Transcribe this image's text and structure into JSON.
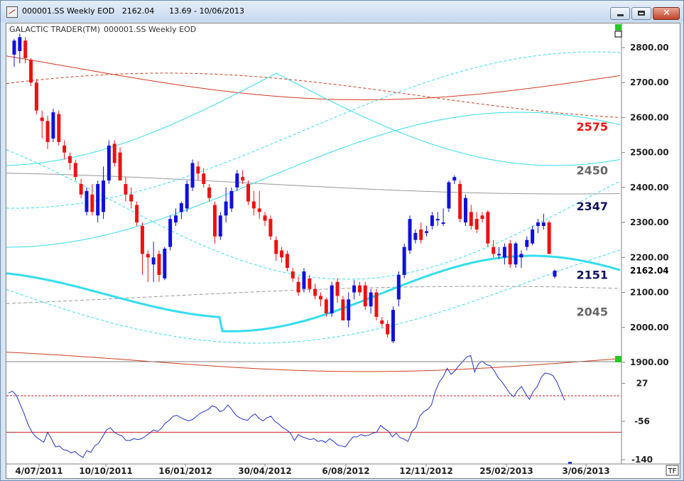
{
  "window": {
    "title": "000001.SS Weekly EOD   2162.04      13.69 - 10/06/2013"
  },
  "chart_header": {
    "left": "GALACTIC TRADER(TM)",
    "right": "000001.SS Weekly EOD"
  },
  "badge": "TF",
  "colors": {
    "up": "#1010dd",
    "down": "#ee1111",
    "cyan": "#33ddee",
    "red_band": "#d23b1e",
    "gray_band": "#999999",
    "osc": "#2233cc"
  },
  "chart_data": [
    {
      "type": "candlestick",
      "title": "",
      "x_tick_labels": [
        "4/07/2011",
        "10/10/2011",
        "16/01/2012",
        "30/04/2012",
        "6/08/2012",
        "12/11/2012",
        "25/02/2013",
        "3/06/2013"
      ],
      "y_ticks": [
        1900,
        2000,
        2100,
        2200,
        2300,
        2400,
        2500,
        2600,
        2700,
        2800
      ],
      "y_tick_labels": [
        "1900.00",
        "2000.00",
        "2100.00",
        "2200.00",
        "2300.00",
        "2400.00",
        "2500.00",
        "2600.00",
        "2700.00",
        "2800.00"
      ],
      "ylim": [
        1900,
        2860
      ],
      "last_price": "2162.04",
      "annotations": [
        {
          "text": "2575",
          "value": 2575,
          "color": "#ee1111"
        },
        {
          "text": "2450",
          "value": 2450,
          "color": "#666666"
        },
        {
          "text": "2347",
          "value": 2347,
          "color": "#101060"
        },
        {
          "text": "2151",
          "value": 2151,
          "color": "#101060"
        },
        {
          "text": "2045",
          "value": 2045,
          "color": "#666666"
        }
      ],
      "candles": [
        {
          "o": 2780,
          "h": 2825,
          "l": 2745,
          "c": 2820
        },
        {
          "o": 2790,
          "h": 2840,
          "l": 2755,
          "c": 2830
        },
        {
          "o": 2820,
          "h": 2830,
          "l": 2755,
          "c": 2770
        },
        {
          "o": 2765,
          "h": 2770,
          "l": 2690,
          "c": 2700
        },
        {
          "o": 2700,
          "h": 2710,
          "l": 2610,
          "c": 2620
        },
        {
          "o": 2600,
          "h": 2620,
          "l": 2540,
          "c": 2590
        },
        {
          "o": 2590,
          "h": 2605,
          "l": 2510,
          "c": 2530
        },
        {
          "o": 2540,
          "h": 2625,
          "l": 2530,
          "c": 2615
        },
        {
          "o": 2610,
          "h": 2620,
          "l": 2520,
          "c": 2530
        },
        {
          "o": 2520,
          "h": 2535,
          "l": 2480,
          "c": 2500
        },
        {
          "o": 2490,
          "h": 2500,
          "l": 2450,
          "c": 2470
        },
        {
          "o": 2470,
          "h": 2480,
          "l": 2420,
          "c": 2430
        },
        {
          "o": 2410,
          "h": 2425,
          "l": 2370,
          "c": 2380
        },
        {
          "o": 2330,
          "h": 2400,
          "l": 2320,
          "c": 2390
        },
        {
          "o": 2380,
          "h": 2410,
          "l": 2320,
          "c": 2330
        },
        {
          "o": 2320,
          "h": 2420,
          "l": 2300,
          "c": 2410
        },
        {
          "o": 2330,
          "h": 2460,
          "l": 2310,
          "c": 2420
        },
        {
          "o": 2420,
          "h": 2535,
          "l": 2410,
          "c": 2520
        },
        {
          "o": 2525,
          "h": 2535,
          "l": 2460,
          "c": 2470
        },
        {
          "o": 2500,
          "h": 2515,
          "l": 2420,
          "c": 2420
        },
        {
          "o": 2410,
          "h": 2430,
          "l": 2360,
          "c": 2380
        },
        {
          "o": 2380,
          "h": 2400,
          "l": 2340,
          "c": 2360
        },
        {
          "o": 2350,
          "h": 2360,
          "l": 2290,
          "c": 2300
        },
        {
          "o": 2290,
          "h": 2300,
          "l": 2150,
          "c": 2210
        },
        {
          "o": 2210,
          "h": 2220,
          "l": 2130,
          "c": 2200
        },
        {
          "o": 2180,
          "h": 2245,
          "l": 2130,
          "c": 2200
        },
        {
          "o": 2210,
          "h": 2220,
          "l": 2130,
          "c": 2150
        },
        {
          "o": 2140,
          "h": 2230,
          "l": 2135,
          "c": 2225
        },
        {
          "o": 2230,
          "h": 2320,
          "l": 2220,
          "c": 2310
        },
        {
          "o": 2300,
          "h": 2340,
          "l": 2290,
          "c": 2320
        },
        {
          "o": 2330,
          "h": 2360,
          "l": 2310,
          "c": 2355
        },
        {
          "o": 2340,
          "h": 2420,
          "l": 2330,
          "c": 2410
        },
        {
          "o": 2400,
          "h": 2480,
          "l": 2390,
          "c": 2470
        },
        {
          "o": 2460,
          "h": 2475,
          "l": 2420,
          "c": 2440
        },
        {
          "o": 2440,
          "h": 2455,
          "l": 2400,
          "c": 2410
        },
        {
          "o": 2400,
          "h": 2410,
          "l": 2360,
          "c": 2370
        },
        {
          "o": 2350,
          "h": 2360,
          "l": 2240,
          "c": 2260
        },
        {
          "o": 2260,
          "h": 2330,
          "l": 2250,
          "c": 2320
        },
        {
          "o": 2320,
          "h": 2400,
          "l": 2300,
          "c": 2360
        },
        {
          "o": 2340,
          "h": 2400,
          "l": 2330,
          "c": 2390
        },
        {
          "o": 2400,
          "h": 2450,
          "l": 2390,
          "c": 2440
        },
        {
          "o": 2430,
          "h": 2450,
          "l": 2410,
          "c": 2420
        },
        {
          "o": 2410,
          "h": 2420,
          "l": 2350,
          "c": 2360
        },
        {
          "o": 2360,
          "h": 2390,
          "l": 2320,
          "c": 2340
        },
        {
          "o": 2340,
          "h": 2390,
          "l": 2310,
          "c": 2330
        },
        {
          "o": 2320,
          "h": 2330,
          "l": 2290,
          "c": 2305
        },
        {
          "o": 2310,
          "h": 2320,
          "l": 2250,
          "c": 2260
        },
        {
          "o": 2250,
          "h": 2260,
          "l": 2190,
          "c": 2210
        },
        {
          "o": 2220,
          "h": 2230,
          "l": 2185,
          "c": 2200
        },
        {
          "o": 2210,
          "h": 2220,
          "l": 2160,
          "c": 2170
        },
        {
          "o": 2160,
          "h": 2170,
          "l": 2130,
          "c": 2140
        },
        {
          "o": 2130,
          "h": 2145,
          "l": 2090,
          "c": 2100
        },
        {
          "o": 2110,
          "h": 2170,
          "l": 2100,
          "c": 2160
        },
        {
          "o": 2140,
          "h": 2150,
          "l": 2100,
          "c": 2110
        },
        {
          "o": 2110,
          "h": 2125,
          "l": 2080,
          "c": 2090
        },
        {
          "o": 2090,
          "h": 2100,
          "l": 2060,
          "c": 2080
        },
        {
          "o": 2080,
          "h": 2085,
          "l": 2030,
          "c": 2040
        },
        {
          "o": 2040,
          "h": 2130,
          "l": 2030,
          "c": 2120
        },
        {
          "o": 2130,
          "h": 2140,
          "l": 2070,
          "c": 2090
        },
        {
          "o": 2080,
          "h": 2090,
          "l": 2020,
          "c": 2020
        },
        {
          "o": 2020,
          "h": 2100,
          "l": 2000,
          "c": 2080
        },
        {
          "o": 2100,
          "h": 2135,
          "l": 2080,
          "c": 2120
        },
        {
          "o": 2120,
          "h": 2130,
          "l": 2090,
          "c": 2100
        },
        {
          "o": 2120,
          "h": 2130,
          "l": 2050,
          "c": 2060
        },
        {
          "o": 2060,
          "h": 2110,
          "l": 2040,
          "c": 2100
        },
        {
          "o": 2100,
          "h": 2110,
          "l": 2020,
          "c": 2030
        },
        {
          "o": 2020,
          "h": 2030,
          "l": 2000,
          "c": 2010
        },
        {
          "o": 2010,
          "h": 2020,
          "l": 1970,
          "c": 1980
        },
        {
          "o": 1960,
          "h": 2060,
          "l": 1955,
          "c": 2050
        },
        {
          "o": 2080,
          "h": 2160,
          "l": 2060,
          "c": 2150
        },
        {
          "o": 2150,
          "h": 2240,
          "l": 2140,
          "c": 2230
        },
        {
          "o": 2220,
          "h": 2320,
          "l": 2210,
          "c": 2310
        },
        {
          "o": 2250,
          "h": 2280,
          "l": 2240,
          "c": 2270
        },
        {
          "o": 2280,
          "h": 2300,
          "l": 2240,
          "c": 2250
        },
        {
          "o": 2270,
          "h": 2290,
          "l": 2260,
          "c": 2275
        },
        {
          "o": 2290,
          "h": 2330,
          "l": 2280,
          "c": 2320
        },
        {
          "o": 2310,
          "h": 2330,
          "l": 2290,
          "c": 2310
        },
        {
          "o": 2300,
          "h": 2340,
          "l": 2290,
          "c": 2300
        },
        {
          "o": 2340,
          "h": 2420,
          "l": 2330,
          "c": 2415
        },
        {
          "o": 2420,
          "h": 2435,
          "l": 2410,
          "c": 2430
        },
        {
          "o": 2410,
          "h": 2420,
          "l": 2300,
          "c": 2310
        },
        {
          "o": 2300,
          "h": 2380,
          "l": 2290,
          "c": 2370
        },
        {
          "o": 2330,
          "h": 2350,
          "l": 2280,
          "c": 2290
        },
        {
          "o": 2310,
          "h": 2330,
          "l": 2270,
          "c": 2280
        },
        {
          "o": 2320,
          "h": 2330,
          "l": 2300,
          "c": 2310
        },
        {
          "o": 2330,
          "h": 2335,
          "l": 2230,
          "c": 2240
        },
        {
          "o": 2230,
          "h": 2250,
          "l": 2200,
          "c": 2210
        },
        {
          "o": 2210,
          "h": 2230,
          "l": 2195,
          "c": 2210
        },
        {
          "o": 2200,
          "h": 2240,
          "l": 2180,
          "c": 2230
        },
        {
          "o": 2240,
          "h": 2250,
          "l": 2170,
          "c": 2180
        },
        {
          "o": 2180,
          "h": 2245,
          "l": 2170,
          "c": 2240
        },
        {
          "o": 2200,
          "h": 2220,
          "l": 2170,
          "c": 2210
        },
        {
          "o": 2230,
          "h": 2260,
          "l": 2220,
          "c": 2250
        },
        {
          "o": 2240,
          "h": 2290,
          "l": 2235,
          "c": 2280
        },
        {
          "o": 2290,
          "h": 2310,
          "l": 2270,
          "c": 2300
        },
        {
          "o": 2290,
          "h": 2325,
          "l": 2280,
          "c": 2300
        },
        {
          "o": 2300,
          "h": 2305,
          "l": 2210,
          "c": 2210
        },
        {
          "o": 2145,
          "h": 2165,
          "l": 2140,
          "c": 2162
        }
      ]
    },
    {
      "type": "line",
      "title": "",
      "y_ticks": [
        27,
        -56,
        -140
      ],
      "y_tick_labels": [
        "27",
        "-56",
        "-140"
      ],
      "ylim": [
        -180,
        110
      ],
      "levels": [
        {
          "value": 0,
          "style": "dashed"
        },
        {
          "value": -80,
          "style": "solid"
        }
      ],
      "values": [
        6,
        10,
        1,
        -19,
        -40,
        -63,
        -80,
        -90,
        -96,
        -102,
        -80,
        -95,
        -112,
        -110,
        -118,
        -120,
        -125,
        -122,
        -130,
        -135,
        -120,
        -124,
        -110,
        -104,
        -90,
        -75,
        -70,
        -80,
        -85,
        -88,
        -98,
        -98,
        -94,
        -96,
        -94,
        -88,
        -82,
        -75,
        -78,
        -72,
        -60,
        -54,
        -45,
        -43,
        -48,
        -52,
        -55,
        -52,
        -45,
        -38,
        -34,
        -30,
        -22,
        -25,
        -35,
        -31,
        -20,
        -30,
        -42,
        -48,
        -52,
        -54,
        -45,
        -40,
        -50,
        -55,
        -48,
        -45,
        -56,
        -62,
        -70,
        -75,
        -82,
        -98,
        -85,
        -90,
        -93,
        -96,
        -94,
        -100,
        -98,
        -102,
        -94,
        -100,
        -108,
        -110,
        -112,
        -100,
        -90,
        -90,
        -85,
        -88,
        -86,
        -82,
        -80,
        -65,
        -72,
        -78,
        -90,
        -82,
        -92,
        -95,
        -100,
        -78,
        -70,
        -45,
        -35,
        -30,
        -20,
        10,
        30,
        42,
        60,
        47,
        55,
        66,
        75,
        85,
        88,
        52,
        70,
        76,
        68,
        66,
        55,
        40,
        30,
        18,
        5,
        -2,
        12,
        20,
        5,
        -8,
        10,
        20,
        40,
        50,
        48,
        44,
        30,
        10,
        -10
      ]
    }
  ]
}
